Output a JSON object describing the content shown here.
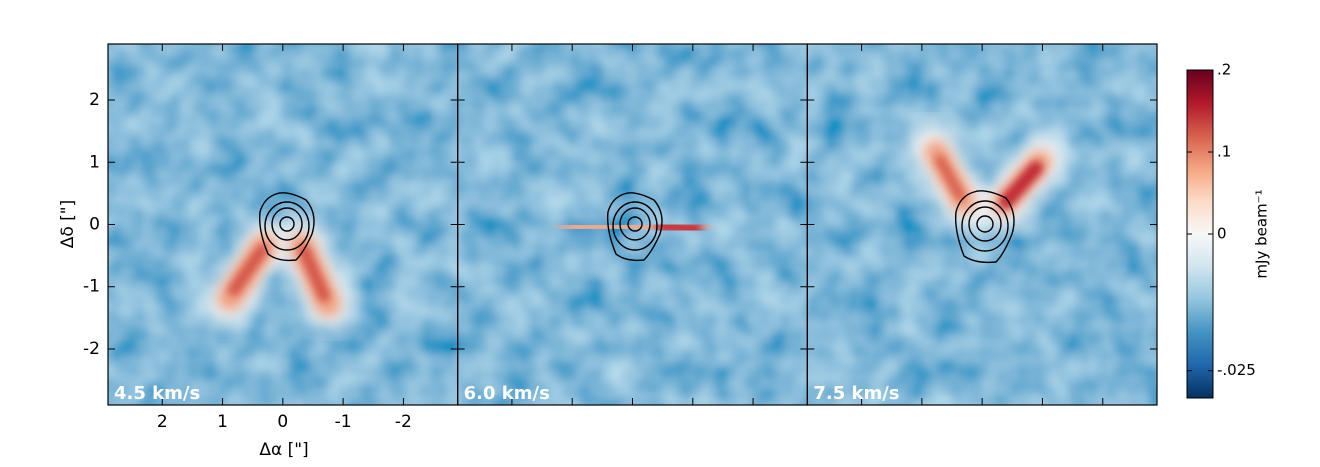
{
  "chart_data": {
    "type": "channel-maps",
    "xlabel": "Δα [\"]",
    "ylabel": "Δδ [\"]",
    "xlim": [
      2.9,
      -2.9
    ],
    "ylim": [
      -2.9,
      2.9
    ],
    "xticks": [
      2,
      1,
      0,
      -1,
      -2
    ],
    "yticks": [
      2,
      1,
      0,
      -1,
      -2
    ],
    "panels": [
      {
        "label": "4.5 km/s"
      },
      {
        "label": "6.0 km/s"
      },
      {
        "label": "7.5 km/s"
      }
    ],
    "colorbar": {
      "label": "mJy beam⁻¹",
      "clim": [
        -0.03,
        0.2
      ],
      "vcenter": 0,
      "colormap": [
        "#053061",
        "#2166ac",
        "#4393c3",
        "#92c5de",
        "#d1e5f0",
        "#f7f7f7",
        "#fddbc7",
        "#f4a582",
        "#d6604d",
        "#b2182b",
        "#67001f"
      ],
      "ticks": [
        {
          "value": 0.2,
          "label": ".2"
        },
        {
          "value": 0.1,
          "label": ".1"
        },
        0,
        {
          "value": -0.025,
          "label": "-.025"
        }
      ]
    }
  }
}
